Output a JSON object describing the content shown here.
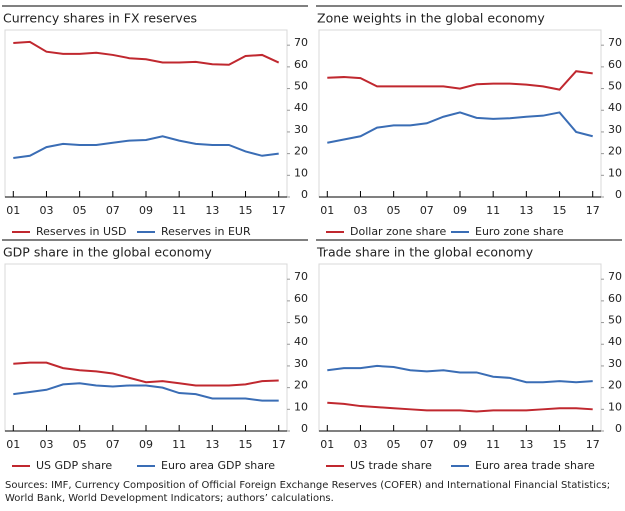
{
  "chart_data": [
    {
      "type": "line",
      "title": "Currency shares in FX reserves",
      "x": [
        1,
        2,
        3,
        4,
        5,
        6,
        7,
        8,
        9,
        10,
        11,
        12,
        13,
        14,
        15,
        16,
        17
      ],
      "xlim": [
        0.5,
        17.5
      ],
      "xticks": [
        {
          "value": 1,
          "label": "01"
        },
        {
          "value": 3,
          "label": "03"
        },
        {
          "value": 5,
          "label": "05"
        },
        {
          "value": 7,
          "label": "07"
        },
        {
          "value": 9,
          "label": "09"
        },
        {
          "value": 11,
          "label": "11"
        },
        {
          "value": 13,
          "label": "13"
        },
        {
          "value": 15,
          "label": "15"
        },
        {
          "value": 17,
          "label": "17"
        }
      ],
      "ylim": [
        0,
        77
      ],
      "yticks": [
        0,
        10,
        20,
        30,
        40,
        50,
        60,
        70
      ],
      "series": [
        {
          "name": "Reserves in USD",
          "color": "#c0282f",
          "values": [
            71,
            71.5,
            67,
            66,
            66,
            66.5,
            65.5,
            64,
            63.5,
            62,
            62,
            62.3,
            61.2,
            61,
            65,
            65.5,
            62
          ]
        },
        {
          "name": "Reserves in EUR",
          "color": "#3a6db5",
          "values": [
            18,
            19,
            23,
            24.5,
            24,
            24,
            25,
            26,
            26.3,
            28,
            26,
            24.5,
            24,
            24,
            21,
            19,
            20
          ]
        }
      ]
    },
    {
      "type": "line",
      "title": "Zone weights in the global economy",
      "x": [
        1,
        2,
        3,
        4,
        5,
        6,
        7,
        8,
        9,
        10,
        11,
        12,
        13,
        14,
        15,
        16,
        17
      ],
      "xlim": [
        0.5,
        17.5
      ],
      "xticks": [
        {
          "value": 1,
          "label": "01"
        },
        {
          "value": 3,
          "label": "03"
        },
        {
          "value": 5,
          "label": "05"
        },
        {
          "value": 7,
          "label": "07"
        },
        {
          "value": 9,
          "label": "09"
        },
        {
          "value": 11,
          "label": "11"
        },
        {
          "value": 13,
          "label": "13"
        },
        {
          "value": 15,
          "label": "15"
        },
        {
          "value": 17,
          "label": "17"
        }
      ],
      "ylim": [
        0,
        77
      ],
      "yticks": [
        0,
        10,
        20,
        30,
        40,
        50,
        60,
        70
      ],
      "series": [
        {
          "name": "Dollar zone share",
          "color": "#c0282f",
          "values": [
            55,
            55.3,
            54.8,
            51,
            51,
            51,
            51,
            51,
            50,
            52,
            52.3,
            52.3,
            51.8,
            51,
            49.5,
            58,
            57
          ]
        },
        {
          "name": "Euro zone share",
          "color": "#3a6db5",
          "values": [
            25,
            26.5,
            28,
            32,
            33,
            33,
            34,
            37,
            39,
            36.5,
            36,
            36.3,
            37,
            37.5,
            39,
            30,
            28
          ]
        }
      ]
    },
    {
      "type": "line",
      "title": "GDP share in the global economy",
      "x": [
        1,
        2,
        3,
        4,
        5,
        6,
        7,
        8,
        9,
        10,
        11,
        12,
        13,
        14,
        15,
        16,
        17
      ],
      "xlim": [
        0.5,
        17.5
      ],
      "xticks": [
        {
          "value": 1,
          "label": "01"
        },
        {
          "value": 3,
          "label": "03"
        },
        {
          "value": 5,
          "label": "05"
        },
        {
          "value": 7,
          "label": "07"
        },
        {
          "value": 9,
          "label": "09"
        },
        {
          "value": 11,
          "label": "11"
        },
        {
          "value": 13,
          "label": "13"
        },
        {
          "value": 15,
          "label": "15"
        },
        {
          "value": 17,
          "label": "17"
        }
      ],
      "ylim": [
        0,
        77
      ],
      "yticks": [
        0,
        10,
        20,
        30,
        40,
        50,
        60,
        70
      ],
      "series": [
        {
          "name": "US GDP share",
          "color": "#c0282f",
          "values": [
            31,
            31.5,
            31.5,
            29,
            28,
            27.5,
            26.5,
            24.5,
            22.5,
            23,
            22,
            21,
            21,
            21,
            21.5,
            23,
            23.3
          ]
        },
        {
          "name": "Euro area GDP share",
          "color": "#3a6db5",
          "values": [
            17,
            18,
            19,
            21.5,
            22,
            21,
            20.5,
            21,
            21,
            20,
            17.5,
            17,
            15,
            15,
            15,
            14,
            14
          ]
        }
      ]
    },
    {
      "type": "line",
      "title": "Trade share in the global economy",
      "x": [
        1,
        2,
        3,
        4,
        5,
        6,
        7,
        8,
        9,
        10,
        11,
        12,
        13,
        14,
        15,
        16,
        17
      ],
      "xlim": [
        0.5,
        17.5
      ],
      "xticks": [
        {
          "value": 1,
          "label": "01"
        },
        {
          "value": 3,
          "label": "03"
        },
        {
          "value": 5,
          "label": "05"
        },
        {
          "value": 7,
          "label": "07"
        },
        {
          "value": 9,
          "label": "09"
        },
        {
          "value": 11,
          "label": "11"
        },
        {
          "value": 13,
          "label": "13"
        },
        {
          "value": 15,
          "label": "15"
        },
        {
          "value": 17,
          "label": "17"
        }
      ],
      "ylim": [
        0,
        77
      ],
      "yticks": [
        0,
        10,
        20,
        30,
        40,
        50,
        60,
        70
      ],
      "series": [
        {
          "name": "US trade share",
          "color": "#c0282f",
          "values": [
            13,
            12.5,
            11.5,
            11,
            10.5,
            10,
            9.5,
            9.5,
            9.5,
            9,
            9.5,
            9.5,
            9.5,
            10,
            10.5,
            10.5,
            10
          ]
        },
        {
          "name": "Euro area trade share",
          "color": "#3a6db5",
          "values": [
            28,
            29,
            29,
            30,
            29.5,
            28,
            27.5,
            28,
            27,
            27,
            25,
            24.5,
            22.5,
            22.5,
            23,
            22.5,
            23
          ]
        }
      ]
    }
  ],
  "source": "Sources: IMF, Currency Composition of Official Foreign Exchange Reserves (COFER) and International Financial Statistics; World Bank, World Development Indicators; authors’ calculations."
}
